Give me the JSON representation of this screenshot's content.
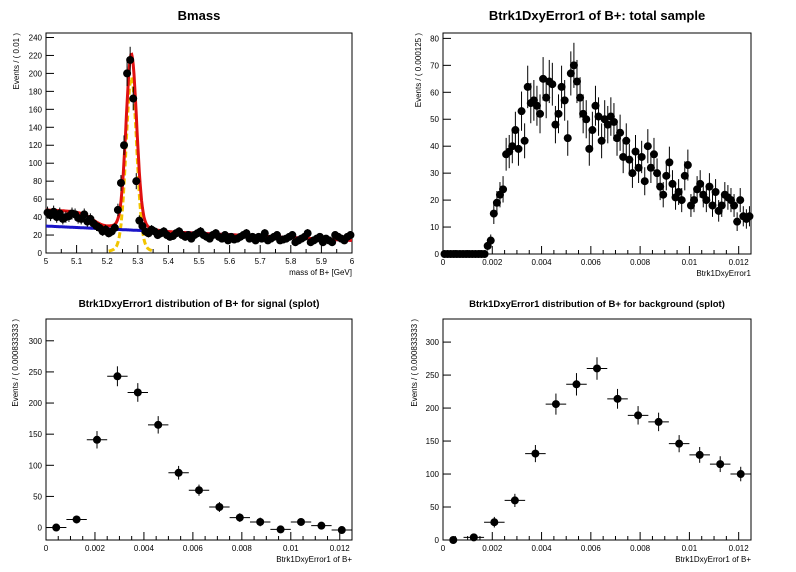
{
  "chart_data": [
    {
      "type": "scatter",
      "title": "Bmass",
      "xlabel": "mass of B+ [GeV]",
      "ylabel": "Events / ( 0.01 )",
      "xlim": [
        5,
        6
      ],
      "ylim": [
        0,
        245
      ],
      "xticks": [
        5,
        5.1,
        5.2,
        5.3,
        5.4,
        5.5,
        5.6,
        5.7,
        5.8,
        5.9,
        6
      ],
      "xtick_labels": [
        "5",
        "5.1",
        "5.2",
        "5.3",
        "5.4",
        "5.5",
        "5.6",
        "5.7",
        "5.8",
        "5.9",
        "6"
      ],
      "yticks": [
        0,
        20,
        40,
        60,
        80,
        100,
        120,
        140,
        160,
        180,
        200,
        220,
        240
      ],
      "ytick_labels": [
        "0",
        "20",
        "40",
        "60",
        "80",
        "100",
        "120",
        "140",
        "160",
        "180",
        "200",
        "220",
        "240"
      ],
      "x": [
        5.005,
        5.015,
        5.025,
        5.035,
        5.045,
        5.055,
        5.065,
        5.075,
        5.085,
        5.095,
        5.105,
        5.115,
        5.125,
        5.135,
        5.145,
        5.155,
        5.165,
        5.175,
        5.185,
        5.195,
        5.205,
        5.215,
        5.225,
        5.235,
        5.245,
        5.255,
        5.265,
        5.275,
        5.285,
        5.295,
        5.305,
        5.315,
        5.325,
        5.335,
        5.345,
        5.355,
        5.365,
        5.375,
        5.385,
        5.395,
        5.405,
        5.415,
        5.425,
        5.435,
        5.445,
        5.455,
        5.465,
        5.475,
        5.485,
        5.495,
        5.505,
        5.515,
        5.525,
        5.535,
        5.545,
        5.555,
        5.565,
        5.575,
        5.585,
        5.595,
        5.605,
        5.615,
        5.625,
        5.635,
        5.645,
        5.655,
        5.665,
        5.675,
        5.685,
        5.695,
        5.705,
        5.715,
        5.725,
        5.735,
        5.745,
        5.755,
        5.765,
        5.775,
        5.785,
        5.795,
        5.805,
        5.815,
        5.825,
        5.835,
        5.845,
        5.855,
        5.865,
        5.875,
        5.885,
        5.895,
        5.905,
        5.915,
        5.925,
        5.935,
        5.945,
        5.955,
        5.965,
        5.975,
        5.985,
        5.995
      ],
      "y": [
        45,
        42,
        46,
        40,
        44,
        38,
        40,
        41,
        44,
        43,
        39,
        38,
        43,
        35,
        38,
        33,
        30,
        28,
        24,
        26,
        22,
        24,
        28,
        48,
        78,
        120,
        200,
        215,
        172,
        80,
        36,
        30,
        24,
        22,
        26,
        24,
        20,
        22,
        24,
        20,
        18,
        19,
        22,
        24,
        20,
        18,
        20,
        16,
        20,
        22,
        24,
        20,
        18,
        16,
        20,
        22,
        18,
        16,
        20,
        14,
        18,
        15,
        16,
        18,
        20,
        22,
        16,
        18,
        14,
        18,
        16,
        22,
        14,
        16,
        18,
        20,
        14,
        15,
        16,
        18,
        20,
        12,
        14,
        16,
        18,
        22,
        12,
        14,
        16,
        18,
        12,
        16,
        14,
        12,
        20,
        18,
        16,
        14,
        18,
        20
      ],
      "fit_total": "red",
      "fit_signal": "gold",
      "fit_background": "blue"
    },
    {
      "type": "scatter",
      "title": "Btrk1DxyError1 of B+: total sample",
      "xlabel": "Btrk1DxyError1",
      "ylabel": "Events / ( 0.000125 )",
      "xlim": [
        0,
        0.0125
      ],
      "ylim": [
        0,
        82
      ],
      "xticks": [
        0,
        0.002,
        0.004,
        0.006,
        0.008,
        0.01,
        0.012
      ],
      "xtick_labels": [
        "0",
        "0.002",
        "0.004",
        "0.006",
        "0.008",
        "0.01",
        "0.012"
      ],
      "yticks": [
        0,
        10,
        20,
        30,
        40,
        50,
        60,
        70,
        80
      ],
      "ytick_labels": [
        "0",
        "10",
        "20",
        "30",
        "40",
        "50",
        "60",
        "70",
        "80"
      ],
      "x": [
        6.25e-05,
        0.0001875,
        0.0003125,
        0.0004375,
        0.0005625,
        0.0006875,
        0.0008125,
        0.0009375,
        0.0010625,
        0.0011875,
        0.0013125,
        0.0014375,
        0.0015625,
        0.0016875,
        0.0018125,
        0.0019375,
        0.0020625,
        0.0021875,
        0.0023125,
        0.0024375,
        0.0025625,
        0.0026875,
        0.0028125,
        0.0029375,
        0.0030625,
        0.0031875,
        0.0033125,
        0.0034375,
        0.0035625,
        0.0036875,
        0.0038125,
        0.0039375,
        0.0040625,
        0.0041875,
        0.0043125,
        0.0044375,
        0.0045625,
        0.0046875,
        0.0048125,
        0.0049375,
        0.0050625,
        0.0051875,
        0.0053125,
        0.0054375,
        0.0055625,
        0.0056875,
        0.0058125,
        0.0059375,
        0.0060625,
        0.0061875,
        0.0063125,
        0.0064375,
        0.0065625,
        0.0066875,
        0.0068125,
        0.0069375,
        0.0070625,
        0.0071875,
        0.0073125,
        0.0074375,
        0.0075625,
        0.0076875,
        0.0078125,
        0.0079375,
        0.0080625,
        0.0081875,
        0.0083125,
        0.0084375,
        0.0085625,
        0.0086875,
        0.0088125,
        0.0089375,
        0.0090625,
        0.0091875,
        0.0093125,
        0.0094375,
        0.0095625,
        0.0096875,
        0.0098125,
        0.0099375,
        0.0100625,
        0.0101875,
        0.0103125,
        0.0104375,
        0.0105625,
        0.0106875,
        0.0108125,
        0.0109375,
        0.0110625,
        0.0111875,
        0.0113125,
        0.0114375,
        0.0115625,
        0.0116875,
        0.0118125,
        0.0119375,
        0.0120625,
        0.0121875,
        0.0123125,
        0.0124375
      ],
      "y": [
        0,
        0,
        0,
        0,
        0,
        0,
        0,
        0,
        0,
        0,
        0,
        0,
        0,
        0,
        3,
        5,
        15,
        19,
        22,
        24,
        37,
        38,
        40,
        46,
        39,
        53,
        42,
        62,
        56,
        57,
        55,
        52,
        65,
        58,
        64,
        63,
        48,
        52,
        62,
        57,
        43,
        67,
        70,
        64,
        58,
        52,
        50,
        39,
        46,
        55,
        51,
        42,
        50,
        48,
        51,
        49,
        43,
        45,
        36,
        42,
        35,
        30,
        38,
        32,
        36,
        27,
        40,
        32,
        37,
        30,
        25,
        22,
        29,
        34,
        26,
        21,
        23,
        20,
        29,
        33,
        18,
        20,
        24,
        26,
        22,
        20,
        25,
        18,
        23,
        16,
        18,
        22,
        21,
        20,
        18,
        12,
        20,
        14,
        13,
        14
      ]
    },
    {
      "type": "scatter",
      "title": "Btrk1DxyError1 distribution of B+ for signal (splot)",
      "xlabel": "Btrk1DxyError1 of B+",
      "ylabel": "Events / ( 0.000833333 )",
      "xlim": [
        0,
        0.0125
      ],
      "ylim": [
        -20,
        335
      ],
      "xticks": [
        0,
        0.002,
        0.004,
        0.006,
        0.008,
        0.01,
        0.012
      ],
      "xtick_labels": [
        "0",
        "0.002",
        "0.004",
        "0.006",
        "0.008",
        "0.01",
        "0.012"
      ],
      "yticks": [
        0,
        50,
        100,
        150,
        200,
        250,
        300
      ],
      "ytick_labels": [
        "0",
        "50",
        "100",
        "150",
        "200",
        "250",
        "300"
      ],
      "x": [
        0.000417,
        0.00125,
        0.002083,
        0.002917,
        0.00375,
        0.004583,
        0.005417,
        0.00625,
        0.007083,
        0.007917,
        0.00875,
        0.009583,
        0.010417,
        0.01125,
        0.012083
      ],
      "y": [
        0,
        13,
        141,
        243,
        217,
        165,
        88,
        60,
        33,
        16,
        9,
        -3,
        9,
        3,
        -4
      ],
      "yerr": [
        5,
        6,
        14,
        16,
        15,
        14,
        11,
        9,
        8,
        7,
        7,
        6,
        6,
        5,
        5
      ]
    },
    {
      "type": "scatter",
      "title": "Btrk1DxyError1 distribution of B+ for background (splot)",
      "xlabel": "Btrk1DxyError1 of B+",
      "ylabel": "Events / ( 0.000833333 )",
      "xlim": [
        0,
        0.0125
      ],
      "ylim": [
        0,
        335
      ],
      "xticks": [
        0,
        0.002,
        0.004,
        0.006,
        0.008,
        0.01,
        0.012
      ],
      "xtick_labels": [
        "0",
        "0.002",
        "0.004",
        "0.006",
        "0.008",
        "0.01",
        "0.012"
      ],
      "yticks": [
        0,
        50,
        100,
        150,
        200,
        250,
        300
      ],
      "ytick_labels": [
        "0",
        "50",
        "100",
        "150",
        "200",
        "250",
        "300"
      ],
      "x": [
        0.000417,
        0.00125,
        0.002083,
        0.002917,
        0.00375,
        0.004583,
        0.005417,
        0.00625,
        0.007083,
        0.007917,
        0.00875,
        0.009583,
        0.010417,
        0.01125,
        0.012083
      ],
      "y": [
        0,
        4,
        27,
        60,
        131,
        206,
        236,
        260,
        214,
        189,
        179,
        146,
        129,
        115,
        100
      ],
      "yerr": [
        2,
        3,
        8,
        10,
        13,
        16,
        17,
        17,
        15,
        14,
        14,
        13,
        12,
        12,
        11
      ]
    }
  ]
}
